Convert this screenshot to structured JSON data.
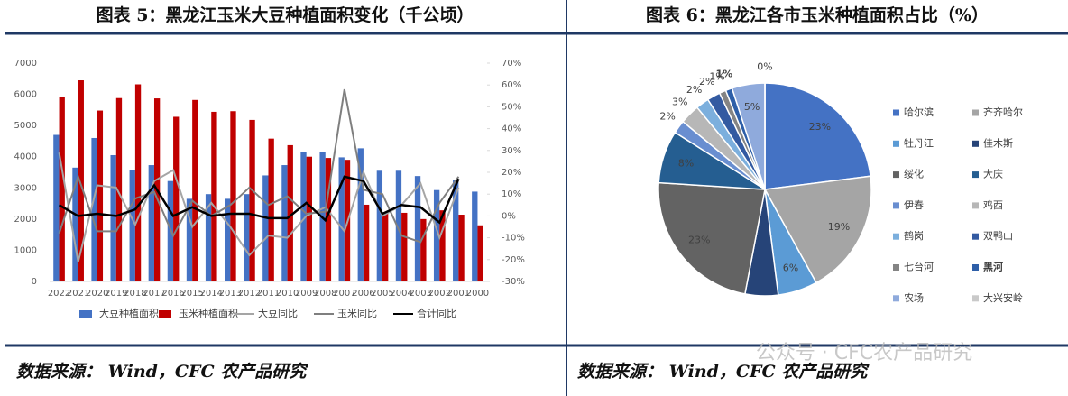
{
  "watermark": "公众号 · CFC农产品研究",
  "chart_data": [
    {
      "type": "bar",
      "title": "图表 5：黑龙江玉米大豆种植面积变化（千公顷）",
      "source": "数据来源： Wind，CFC 农产品研究",
      "categories": [
        "2022",
        "2021",
        "2020",
        "2019",
        "2018",
        "2017",
        "2016",
        "2015",
        "2014",
        "2013",
        "2012",
        "2011",
        "2010",
        "2009",
        "2008",
        "2007",
        "2006",
        "2005",
        "2004",
        "2003",
        "2002",
        "2001",
        "2000"
      ],
      "series": [
        {
          "name": "大豆种植面积",
          "type": "bar",
          "color": "#4472c4",
          "values": [
            4700,
            3650,
            4600,
            4050,
            3570,
            3730,
            3220,
            2650,
            2800,
            2650,
            2800,
            3400,
            3730,
            4150,
            4150,
            3980,
            4270,
            3550,
            3550,
            3380,
            2930,
            3260,
            2880
          ]
        },
        {
          "name": "玉米种植面积",
          "type": "bar",
          "color": "#c00000",
          "values": [
            5930,
            6450,
            5480,
            5880,
            6320,
            5870,
            5280,
            5820,
            5440,
            5460,
            5180,
            4580,
            4370,
            4000,
            3960,
            3900,
            2460,
            2200,
            2200,
            2000,
            2280,
            2140,
            1800
          ]
        },
        {
          "name": "大豆同比",
          "type": "line",
          "axis": "y2",
          "color": "#a5a5a5",
          "values": [
            29,
            -21,
            14,
            13,
            -4,
            16,
            21,
            -5,
            6,
            -5,
            -18,
            -9,
            -10,
            0,
            4,
            -7,
            20,
            0,
            5,
            15,
            -10,
            13,
            null
          ]
        },
        {
          "name": "玉米同比",
          "type": "line",
          "axis": "y2",
          "color": "#7f7f7f",
          "values": [
            -8,
            18,
            -7,
            -7,
            8,
            11,
            -9,
            7,
            0,
            5,
            13,
            5,
            9,
            1,
            2,
            58,
            12,
            10,
            -9,
            -12,
            6,
            18,
            null
          ]
        },
        {
          "name": "合计同比",
          "type": "line",
          "axis": "y2",
          "color": "#000000",
          "values": [
            5,
            0,
            1,
            0,
            3,
            14,
            0,
            4,
            0,
            1,
            1,
            -1,
            -1,
            6,
            -2,
            18,
            16,
            1,
            5,
            4,
            -3,
            17,
            null
          ]
        }
      ],
      "ylim": [
        0,
        7000
      ],
      "yticks": [
        0,
        1000,
        2000,
        3000,
        4000,
        5000,
        6000,
        7000
      ],
      "y2lim": [
        -30,
        70
      ],
      "y2ticks": [
        {
          "value": -30,
          "label": "-30%"
        },
        {
          "value": -20,
          "label": "-20%"
        },
        {
          "value": -10,
          "label": "-10%"
        },
        {
          "value": 0,
          "label": "0%"
        },
        {
          "value": 10,
          "label": "10%"
        },
        {
          "value": 20,
          "label": "20%"
        },
        {
          "value": 30,
          "label": "30%"
        },
        {
          "value": 40,
          "label": "40%"
        },
        {
          "value": 50,
          "label": "50%"
        },
        {
          "value": 60,
          "label": "60%"
        },
        {
          "value": 70,
          "label": "70%"
        }
      ],
      "legend": "bottom"
    },
    {
      "type": "pie",
      "title": "图表 6：黑龙江各市玉米种植面积占比（%）",
      "source": "数据来源： Wind，CFC 农产品研究",
      "categories": [
        "哈尔滨",
        "齐齐哈尔",
        "牡丹江",
        "佳木斯",
        "绥化",
        "大庆",
        "伊春",
        "鸡西",
        "鹤岗",
        "双鸭山",
        "七台河",
        "黑河",
        "农场",
        "大兴安岭"
      ],
      "values": [
        23,
        19,
        6,
        5,
        23,
        8,
        2,
        3,
        2,
        2,
        1,
        1,
        5,
        0
      ],
      "value_labels": [
        "23%",
        "19%",
        "6%",
        null,
        "23%",
        "8%",
        "2%",
        "3%",
        "2%",
        "2%",
        "1%",
        "1%",
        "5%",
        "0%"
      ],
      "colors": [
        "#4472c4",
        "#a5a5a5",
        "#5b9bd5",
        "#264478",
        "#636363",
        "#255e91",
        "#698ed0",
        "#b7b7b7",
        "#7cafdd",
        "#335aa1",
        "#848484",
        "#2e5fa8",
        "#8faadc",
        "#c9c9c9"
      ],
      "highlight": "黑河",
      "highlight_color": "#c00000",
      "legend": "right"
    }
  ]
}
